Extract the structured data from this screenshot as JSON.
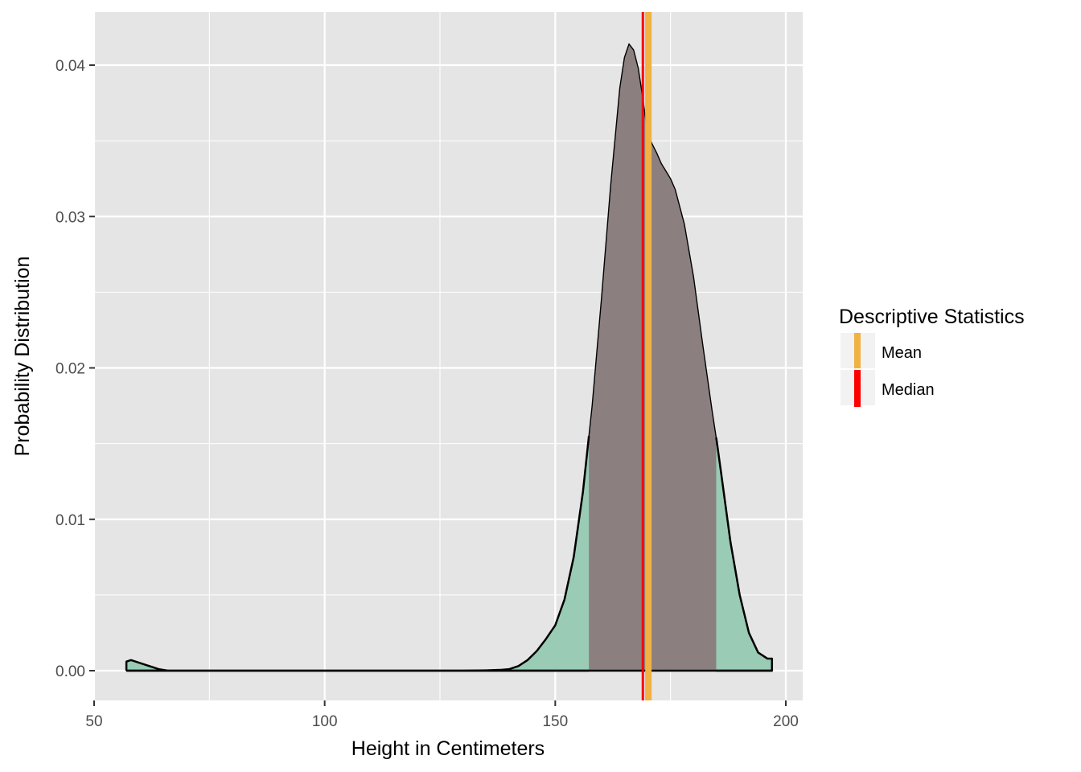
{
  "chart_data": {
    "type": "area",
    "xlabel": "Height in Centimeters",
    "ylabel": "Probability Distribution",
    "xlim": [
      50,
      200
    ],
    "ylim": [
      0,
      0.04
    ],
    "x_ticks": [
      50,
      100,
      150,
      200
    ],
    "x_tick_labels": [
      "50",
      "100",
      "150",
      "200"
    ],
    "y_ticks": [
      0,
      0.01,
      0.02,
      0.03,
      0.04
    ],
    "y_tick_labels": [
      "0.00",
      "0.01",
      "0.02",
      "0.03",
      "0.04"
    ],
    "grid": true,
    "density": {
      "x": [
        57,
        58,
        59,
        60,
        62,
        64,
        66,
        70,
        80,
        100,
        120,
        130,
        135,
        138,
        140,
        142,
        144,
        146,
        148,
        150,
        152,
        154,
        156,
        157.3,
        158,
        160,
        162,
        164,
        165,
        166,
        167,
        168,
        169,
        170,
        171,
        172,
        173,
        174,
        175,
        176,
        178,
        180,
        182,
        184,
        185,
        186,
        188,
        190,
        192,
        194,
        196,
        197
      ],
      "y": [
        0.0006,
        0.0007,
        0.0006,
        0.0005,
        0.0003,
        0.0001,
        0.0,
        0.0,
        0.0,
        0.0,
        0.0,
        0.0,
        2e-05,
        5e-05,
        0.0001,
        0.0003,
        0.0007,
        0.0013,
        0.0021,
        0.003,
        0.0047,
        0.0075,
        0.0118,
        0.0155,
        0.0175,
        0.0245,
        0.032,
        0.0385,
        0.0405,
        0.0414,
        0.041,
        0.0398,
        0.0378,
        0.0355,
        0.0348,
        0.0342,
        0.0335,
        0.033,
        0.0325,
        0.0318,
        0.0295,
        0.026,
        0.0215,
        0.0172,
        0.0152,
        0.013,
        0.0085,
        0.005,
        0.0025,
        0.0012,
        0.0008,
        0.0008
      ]
    },
    "shaded_interval": {
      "from": 157.3,
      "to": 184.9
    },
    "reference_lines": [
      {
        "name": "Mean",
        "x": 170.2
      },
      {
        "name": "Median",
        "x": 169.0
      }
    ],
    "legend": {
      "title": "Descriptive Statistics",
      "position": "right",
      "entries": [
        "Mean",
        "Median"
      ]
    }
  },
  "colors": {
    "panel_background": "#e5e5e5",
    "grid": "#ffffff",
    "tail_fill": "#99cbb5",
    "interval_fill": "#8b7f80",
    "mean": "#f0b243",
    "median": "#ff0000",
    "legend_key_background": "#f2f2f2"
  }
}
